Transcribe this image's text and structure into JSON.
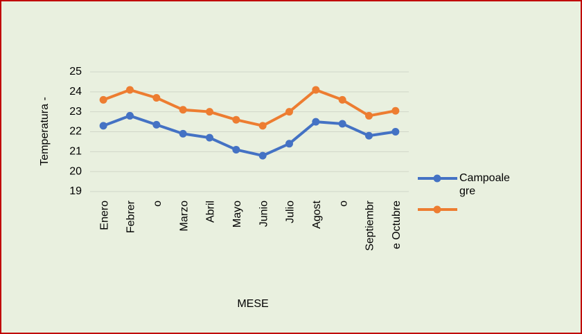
{
  "chart_data": {
    "type": "line",
    "y_label": "Temperatura -",
    "x_label": "MESE",
    "categories": [
      "Enero",
      "Febrer",
      "o",
      "Marzo",
      "Abril",
      "Mayo",
      "Junio",
      "Julio",
      "Agost",
      "o",
      "Septiembr",
      "e Octubre"
    ],
    "series": [
      {
        "name": "Campoalegre",
        "color": "#4472c4",
        "values": [
          22.3,
          22.8,
          22.35,
          21.9,
          21.7,
          21.1,
          20.8,
          21.4,
          22.5,
          22.4,
          21.8,
          22.0
        ]
      },
      {
        "color": "#ed7d31",
        "values": [
          23.6,
          24.1,
          23.7,
          23.1,
          23.0,
          22.6,
          22.3,
          23.0,
          24.1,
          23.6,
          22.8,
          23.05
        ]
      }
    ],
    "ylim": [
      19,
      25
    ],
    "yticks": [
      19,
      20,
      21,
      22,
      23,
      24,
      25
    ],
    "grid": true,
    "legend": "right"
  }
}
